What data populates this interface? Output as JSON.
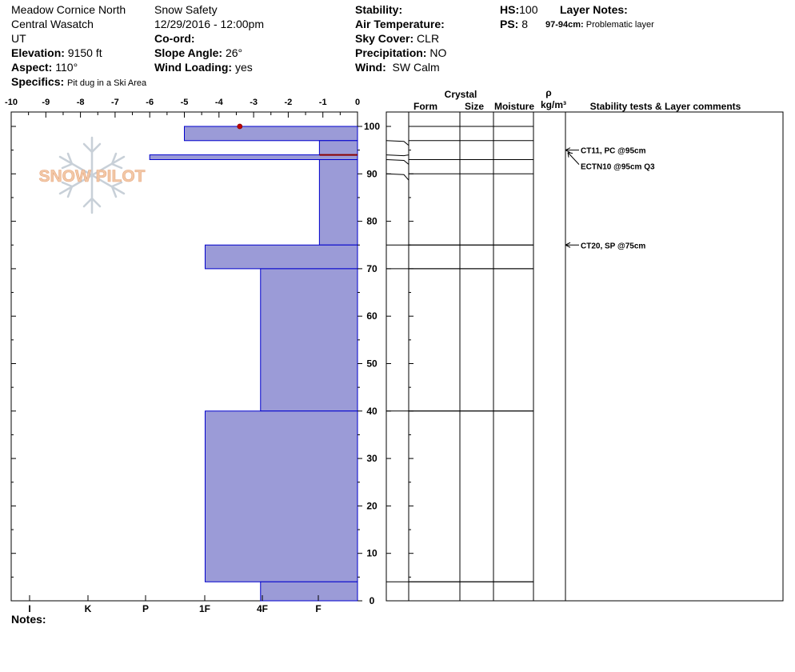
{
  "header": {
    "location": "Meadow Cornice North",
    "range": "Central Wasatch",
    "state": "UT",
    "elevation_label": "Elevation:",
    "elevation_value": "9150 ft",
    "aspect_label": "Aspect:",
    "aspect_value": "110°",
    "specifics_label": "Specifics:",
    "specifics_value": "Pit dug in a Ski Area",
    "organization": "Snow Safety",
    "datetime": "12/29/2016 - 12:00pm",
    "coord_label": "Co-ord:",
    "coord_value": "",
    "slope_label": "Slope Angle:",
    "slope_value": "26°",
    "wind_loading_label": "Wind Loading:",
    "wind_loading_value": "yes",
    "stability_label": "Stability:",
    "stability_value": "",
    "air_temp_label": "Air Temperature:",
    "air_temp_value": "",
    "sky_label": "Sky Cover:",
    "sky_value": "CLR",
    "precip_label": "Precipitation:",
    "precip_value": "NO",
    "wind_label": "Wind:",
    "wind_value": "SW Calm",
    "hs_label": "HS:",
    "hs_value": "100",
    "ps_label": "PS:",
    "ps_value": "8",
    "layer_notes_label": "Layer Notes:",
    "layer_note_range": "97-94cm:",
    "layer_note_text": "Problematic layer"
  },
  "logo_text": "SNOW PILOT",
  "notes_label": "Notes:",
  "colors": {
    "layer_fill": "#9b9bd7",
    "layer_stroke": "#0000cc",
    "marker": "#c00000",
    "weak_line": "#8b0000",
    "logo": "#f2c9a8",
    "flake": "#c8d0d8"
  },
  "chart_data": {
    "type": "snow-profile",
    "temp_axis": {
      "ticks": [
        "-10",
        "-9",
        "-8",
        "-7",
        "-6",
        "-5",
        "-4",
        "-3",
        "-2",
        "-1",
        "0"
      ],
      "range": [
        -10,
        0
      ]
    },
    "hardness_axis": {
      "labels": [
        "I",
        "K",
        "P",
        "1F",
        "4F",
        "F"
      ]
    },
    "height_axis": {
      "range": [
        0,
        100
      ],
      "ticks": [
        "0",
        "10",
        "20",
        "30",
        "40",
        "50",
        "60",
        "70",
        "80",
        "90",
        "100"
      ]
    },
    "columns": {
      "crystal": "Crystal",
      "form": "Form",
      "size": "Size",
      "moisture": "Moisture",
      "rho": "ρ",
      "density_unit": "kg/m³",
      "stability": "Stability tests & Layer comments"
    },
    "layers": [
      {
        "top": 100,
        "bottom": 97,
        "hardness_x": -5.0
      },
      {
        "top": 97,
        "bottom": 94,
        "hardness_x": -1.1
      },
      {
        "top": 94,
        "bottom": 93,
        "hardness_x": -6.0
      },
      {
        "top": 93,
        "bottom": 75,
        "hardness_x": -1.1
      },
      {
        "top": 75,
        "bottom": 70,
        "hardness_x": -4.4
      },
      {
        "top": 70,
        "bottom": 40,
        "hardness_x": -2.8
      },
      {
        "top": 40,
        "bottom": 4,
        "hardness_x": -4.4
      },
      {
        "top": 4,
        "bottom": 0,
        "hardness_x": -2.8
      }
    ],
    "temperature_points": [
      {
        "depth": 100,
        "temp": -3.4
      }
    ],
    "weak_layer_height": 94,
    "right_layer_lines": [
      100,
      97,
      93,
      90,
      75,
      70,
      40,
      4
    ],
    "stability_tests": [
      {
        "text": "CT11, PC @95cm",
        "height": 95
      },
      {
        "text": "ECTN10 @95cm  Q3",
        "height": 95
      },
      {
        "text": "CT20, SP @75cm",
        "height": 75
      }
    ]
  }
}
